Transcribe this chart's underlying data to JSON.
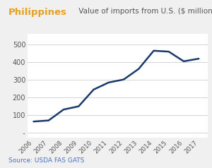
{
  "title_orange": "Philippines",
  "title_gray": " Value of imports from U.S. ($ million)",
  "source": "Source: USDA FAS GATS",
  "years": [
    2006,
    2007,
    2008,
    2009,
    2010,
    2011,
    2012,
    2013,
    2014,
    2015,
    2016,
    2017
  ],
  "values": [
    62,
    68,
    130,
    148,
    243,
    283,
    300,
    360,
    463,
    458,
    403,
    418
  ],
  "line_color": "#1a3a6b",
  "ylim": [
    -30,
    560
  ],
  "yticks": [
    0,
    100,
    200,
    300,
    400,
    500
  ],
  "background_color": "#f0f0f0",
  "plot_bg_color": "#ffffff",
  "title_orange_color": "#e8a020",
  "title_gray_color": "#555555",
  "source_color": "#4472c4",
  "grid_color": "#cccccc",
  "title_orange_fontsize": 9.5,
  "title_gray_fontsize": 7.5,
  "source_fontsize": 6.5
}
